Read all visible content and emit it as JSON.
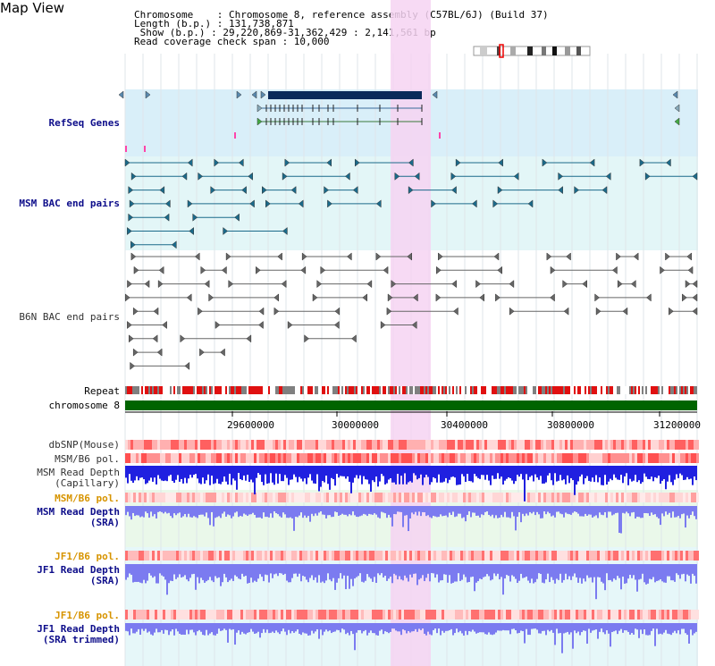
{
  "title": "Map View",
  "info": {
    "chromosome": "Chromosome    : Chromosome 8, reference assembly (C57BL/6J) (Build 37)",
    "length": "Length (b.p.) : 131,738,871",
    "show": " Show (b.p.) : 29,220,869-31,362,429 : 2,141,561 bp",
    "read_coverage": "Read coverage check span : 10,000"
  },
  "tracks": {
    "refseq": "RefSeq Genes",
    "msm_bac": "MSM BAC end pairs",
    "b6n_bac": "B6N BAC end pairs",
    "repeat": "Repeat",
    "chromosome": "chromosome 8",
    "dbsnp": "dbSNP(Mouse)",
    "msm_b6_pol": "MSM/B6 pol.",
    "msm_read_depth_cap_1": "MSM Read Depth",
    "msm_read_depth_cap_2": "(Capillary)",
    "msm_b6_pol_sra": "MSM/B6 pol.",
    "msm_read_depth_sra_1": "MSM Read Depth",
    "msm_read_depth_sra_2": "(SRA)",
    "jf1_b6_pol": "JF1/B6 pol.",
    "jf1_read_depth_1": "JF1 Read Depth",
    "jf1_read_depth_2": "(SRA)",
    "jf1_b6_pol_trim": "JF1/B6 pol.",
    "jf1_read_depth_trim_1": "JF1 Read Depth",
    "jf1_read_depth_trim_2": "(SRA trimmed)"
  },
  "axis": {
    "ticks": [
      "29600000",
      "30000000",
      "30400000",
      "30800000",
      "31200000"
    ]
  },
  "colors": {
    "highlight": "#f6d4f2",
    "refseq_bg": "#d9eff9",
    "msm_bg": "#e3f6f7",
    "msm_feature": "#1b6a8a",
    "b6n_feature": "#666666",
    "chromosome_bar": "#006400",
    "depth_blue": "#2020e0",
    "depth_light": "#7b7bf0"
  }
}
